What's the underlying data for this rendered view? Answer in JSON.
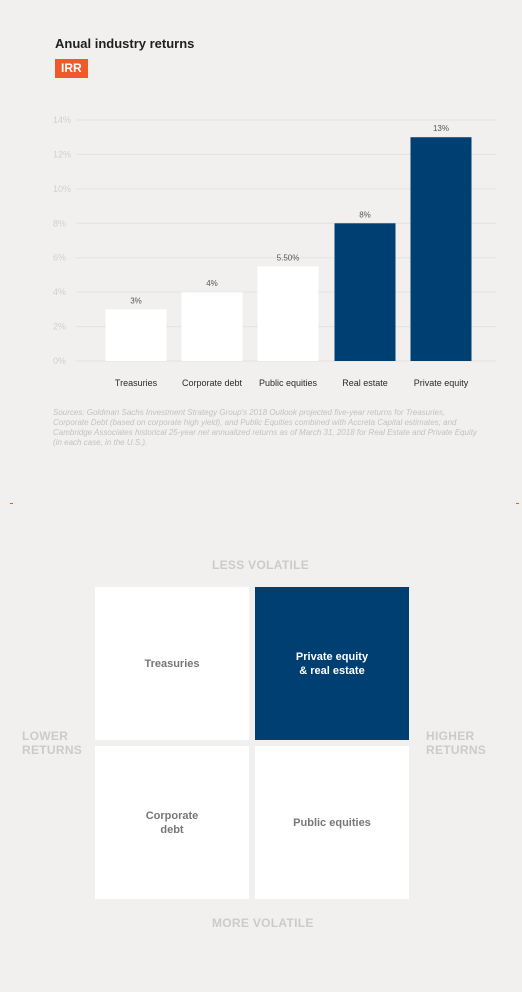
{
  "chart_title": "Anual industry returns",
  "badge": "IRR",
  "chart_data": {
    "type": "bar",
    "categories": [
      "Treasuries",
      "Corporate debt",
      "Public equities",
      "Real estate",
      "Private equity"
    ],
    "values": [
      3,
      4,
      5.5,
      8,
      13
    ],
    "data_labels": [
      "3%",
      "4%",
      "5.50%",
      "8%",
      "13%"
    ],
    "yticks": [
      "0%",
      "2%",
      "4%",
      "6%",
      "8%",
      "10%",
      "12%",
      "14%"
    ],
    "ylim": [
      0,
      14
    ],
    "grid": true,
    "bar_colors": [
      "#ffffff",
      "#ffffff",
      "#ffffff",
      "#003f72",
      "#003f72"
    ]
  },
  "sources": "Sources: Goldman Sachs Investment Strategy Group's 2018 Outlook projected five-year returns for Treasuries, Corporate Debt (based on corporate high yield), and Public Equities combined with Accreta Capital estimates; and Cambridge Associates historical 25-year net annualized returns as of March 31, 2018 for Real Estate and Private Equity (in each case, in the U.S.).",
  "matrix": {
    "top_label": "LESS VOLATILE",
    "bottom_label": "MORE VOLATILE",
    "left_label": "LOWER\nRETURNS",
    "right_label": "HIGHER\nRETURNS",
    "quadrants": {
      "top_left": "Treasuries",
      "top_right": "Private equity\n& real estate",
      "bottom_left": "Corporate\ndebt",
      "bottom_right": "Public equities"
    }
  },
  "colors": {
    "navy": "#003f72",
    "accent": "#ee5a2a",
    "grid": "#e2e2e2",
    "muted_text": "#cbcbcb"
  }
}
